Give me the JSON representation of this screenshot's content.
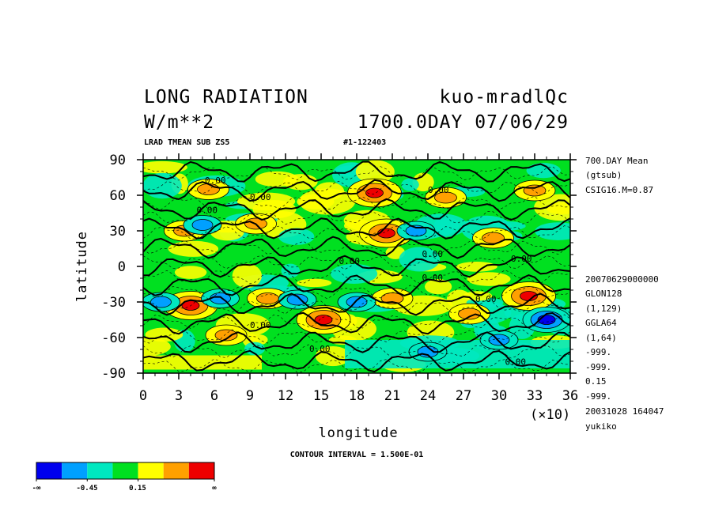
{
  "header": {
    "title_left": "LONG RADIATION",
    "title_right": "kuo-mradlQc",
    "units": "W/m**2",
    "date": "1700.0DAY 07/06/29",
    "sub_left": "LRAD TMEAN SUB ZS5",
    "sub_right": "#1-122403"
  },
  "side_info": {
    "top": [
      "700.DAY Mean",
      "(gtsub)",
      "CSIG16.M=0.87"
    ],
    "bottom": [
      "20070629000000",
      "GLON128",
      "(1,129)",
      "GGLA64",
      "(1,64)",
      "-999.",
      "-999.",
      "0.15",
      "-999.",
      "20031028 164047",
      "yukiko"
    ]
  },
  "contour_interval": "CONTOUR INTERVAL = 1.500E-01",
  "colorbar": {
    "colors": [
      "#0000ee",
      "#00a0ff",
      "#00e8c0",
      "#00e020",
      "#ffff00",
      "#ffa000",
      "#ee0000"
    ],
    "labels": [
      "-∞",
      "-0.45",
      "0.15",
      "∞"
    ]
  },
  "contour_labels": [
    "0.00",
    "0.00",
    "0.00",
    "0.00",
    "0.00",
    "0.00",
    "0.00",
    "0.00",
    "0.00",
    "0.00",
    "0.00",
    "0.00"
  ],
  "chart_data": {
    "type": "heatmap",
    "title": "LONG RADIATION",
    "xlabel": "longitude",
    "ylabel": "latitude",
    "x_multiplier": "(×10)",
    "xlim": [
      0,
      36
    ],
    "ylim": [
      -90,
      90
    ],
    "x_ticks": [
      "0",
      "3",
      "6",
      "9",
      "12",
      "15",
      "18",
      "21",
      "24",
      "27",
      "30",
      "33",
      "36"
    ],
    "y_ticks": [
      "90",
      "60",
      "30",
      "0",
      "-30",
      "-60",
      "-90"
    ],
    "contour_interval": 0.15,
    "color_levels": [
      -0.45,
      0.15
    ],
    "features": [
      {
        "lon": 4,
        "lat": -33,
        "value": "high",
        "peak": true
      },
      {
        "lon": 20.5,
        "lat": 28,
        "value": "high",
        "peak": true
      },
      {
        "lon": 19.5,
        "lat": 62,
        "value": "high",
        "peak": true
      },
      {
        "lon": 32.5,
        "lat": -25,
        "value": "high",
        "peak": true
      },
      {
        "lon": 15.2,
        "lat": -45,
        "value": "high",
        "peak": true
      },
      {
        "lon": 27.5,
        "lat": -40,
        "value": "high",
        "peak": false
      },
      {
        "lon": 21,
        "lat": -27,
        "value": "high",
        "peak": false
      },
      {
        "lon": 10.5,
        "lat": -27,
        "value": "high",
        "peak": false
      },
      {
        "lon": 9.5,
        "lat": 36,
        "value": "high",
        "peak": false
      },
      {
        "lon": 3.5,
        "lat": 30,
        "value": "high",
        "peak": false
      },
      {
        "lon": 29.5,
        "lat": 24,
        "value": "high",
        "peak": false
      },
      {
        "lon": 25.5,
        "lat": 58,
        "value": "high",
        "peak": false
      },
      {
        "lon": 5.5,
        "lat": 65,
        "value": "high",
        "peak": false
      },
      {
        "lon": 33,
        "lat": 64,
        "value": "high",
        "peak": false
      },
      {
        "lon": 7,
        "lat": -58,
        "value": "high",
        "peak": false
      },
      {
        "lon": 6.5,
        "lat": -27,
        "value": "low",
        "peak": false
      },
      {
        "lon": 5,
        "lat": 35,
        "value": "low",
        "peak": false
      },
      {
        "lon": 34,
        "lat": -45,
        "value": "low",
        "peak": true
      },
      {
        "lon": 30,
        "lat": -62,
        "value": "low",
        "peak": false
      },
      {
        "lon": 24,
        "lat": -72,
        "value": "low",
        "peak": false
      },
      {
        "lon": 23,
        "lat": 30,
        "value": "low",
        "peak": false
      },
      {
        "lon": 13,
        "lat": -28,
        "value": "low",
        "peak": false
      },
      {
        "lon": 18,
        "lat": -30,
        "value": "low",
        "peak": false
      },
      {
        "lon": 1.5,
        "lat": -30,
        "value": "low",
        "peak": false
      }
    ]
  }
}
